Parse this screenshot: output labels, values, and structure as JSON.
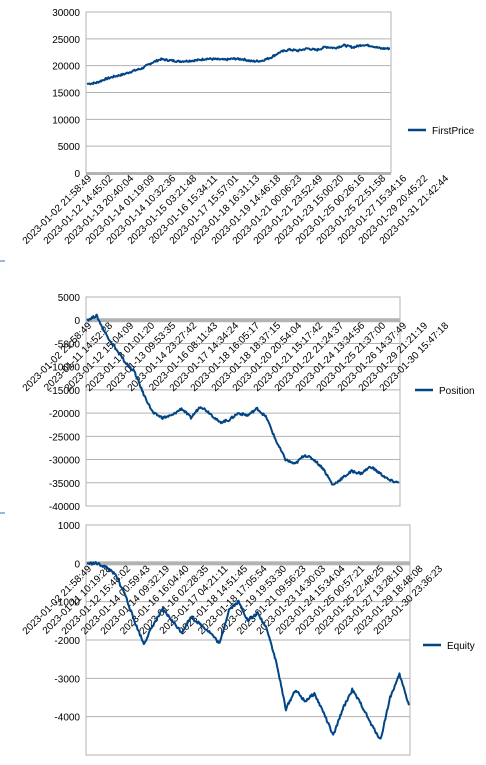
{
  "chart_data": [
    {
      "type": "line",
      "title": "",
      "xlabel": "",
      "ylabel": "",
      "ylim": [
        0,
        30000
      ],
      "yticks": [
        0,
        5000,
        10000,
        15000,
        20000,
        25000,
        30000
      ],
      "grid": true,
      "legend_position": "right",
      "line_color": "#004586",
      "xtick_labels": [
        "2023-01-02 21:58:49",
        "2023-01-12 14:45:02",
        "2023-01-13 20:40:04",
        "2023-01-14 01:19:09",
        "2023-01-14 10:32:36",
        "2023-01-15 03:21:48",
        "2023-01-16 15:34:11",
        "2023-01-17 15:57:01",
        "2023-01-18 16:31:13",
        "2023-01-19 14:46:18",
        "2023-01-21 00:06:23",
        "2023-01-21 23:52:49",
        "2023-01-23 15:00:20",
        "2023-01-25 00:26:16",
        "2023-01-25 22:51:58",
        "2023-01-27 15:34:16",
        "2023-01-29 20:45:22",
        "2023-01-31 21:42:44"
      ],
      "series": [
        {
          "name": "FirstPrice",
          "values": [
            16600,
            16800,
            17500,
            18000,
            18400,
            19000,
            19500,
            20500,
            21200,
            21000,
            20800,
            20900,
            21000,
            21300,
            21200,
            21100,
            21300,
            21200,
            20800,
            20900,
            21500,
            22500,
            23000,
            22800,
            23200,
            22900,
            23500,
            23300,
            23800,
            23400,
            23900,
            23700,
            23200,
            23200
          ]
        }
      ]
    },
    {
      "type": "line",
      "title": "",
      "xlabel": "",
      "ylabel": "",
      "ylim": [
        -40000,
        5000
      ],
      "yticks": [
        -40000,
        -35000,
        -30000,
        -25000,
        -20000,
        -15000,
        -10000,
        -5000,
        0,
        5000
      ],
      "grid": true,
      "legend_position": "right",
      "line_color": "#004586",
      "xtick_labels": [
        "2023-01-02 21:58:49",
        "2023-01-11 14:52:28",
        "2023-01-12 15:04:09",
        "2023-01-13 01:01:20",
        "2023-01-13 09:53:35",
        "2023-01-14 23:27:42",
        "2023-01-16 08:11:43",
        "2023-01-17 14:34:24",
        "2023-01-18 16:05:17",
        "2023-01-18 18:37:15",
        "2023-01-20 20:54:04",
        "2023-01-21 15:17:42",
        "2023-01-22 21:24:37",
        "2023-01-24 13:34:56",
        "2023-01-25 21:37:00",
        "2023-01-26 14:37:49",
        "2023-01-29 21:21:19",
        "2023-01-30 15:47:18"
      ],
      "series": [
        {
          "name": "Position",
          "values": [
            0,
            1000,
            -3000,
            -6000,
            -9000,
            -11000,
            -16000,
            -20000,
            -21000,
            -20500,
            -19000,
            -21000,
            -18500,
            -20000,
            -22000,
            -21500,
            -20000,
            -20500,
            -19000,
            -21000,
            -26000,
            -30000,
            -31000,
            -29000,
            -30000,
            -32000,
            -35500,
            -34000,
            -32500,
            -33000,
            -31500,
            -33000,
            -34500,
            -35000
          ]
        }
      ]
    },
    {
      "type": "line",
      "title": "",
      "xlabel": "",
      "ylabel": "",
      "ylim": [
        -5000,
        1000
      ],
      "yticks": [
        -4000,
        -3000,
        -2000,
        -1000,
        0,
        1000
      ],
      "grid": true,
      "legend_position": "right",
      "line_color": "#004586",
      "xtick_labels": [
        "2023-01-02 21:58:49",
        "2023-01-11 10:19:28",
        "2023-01-12 15:48:02",
        "2023-01-14 00:59:43",
        "2023-01-14 09:32:19",
        "2023-01-16 16:04:40",
        "2023-01-16 02:28:35",
        "2023-01-17 04:21:11",
        "2023-01-18 14:51:45",
        "2023-01-18 17:05:54",
        "2023-01-19 19:53:30",
        "2023-01-21 09:56:23",
        "2023-01-23 14:30:03",
        "2023-01-24 15:34:04",
        "2023-01-25 00:57:21",
        "2023-01-25 22:48:25",
        "2023-01-27 13:28:10",
        "2023-01-29 18:48:08",
        "2023-01-30 23:36:23"
      ],
      "series": [
        {
          "name": "Equity",
          "values": [
            0,
            0,
            -100,
            -300,
            -800,
            -1500,
            -2100,
            -1600,
            -1200,
            -1500,
            -1800,
            -1400,
            -1600,
            -1800,
            -2100,
            -1200,
            -1000,
            -1500,
            -1300,
            -1700,
            -2600,
            -3800,
            -3300,
            -3600,
            -3400,
            -3900,
            -4500,
            -3800,
            -3300,
            -3700,
            -4200,
            -4600,
            -3500,
            -2900,
            -3700
          ]
        }
      ]
    }
  ]
}
